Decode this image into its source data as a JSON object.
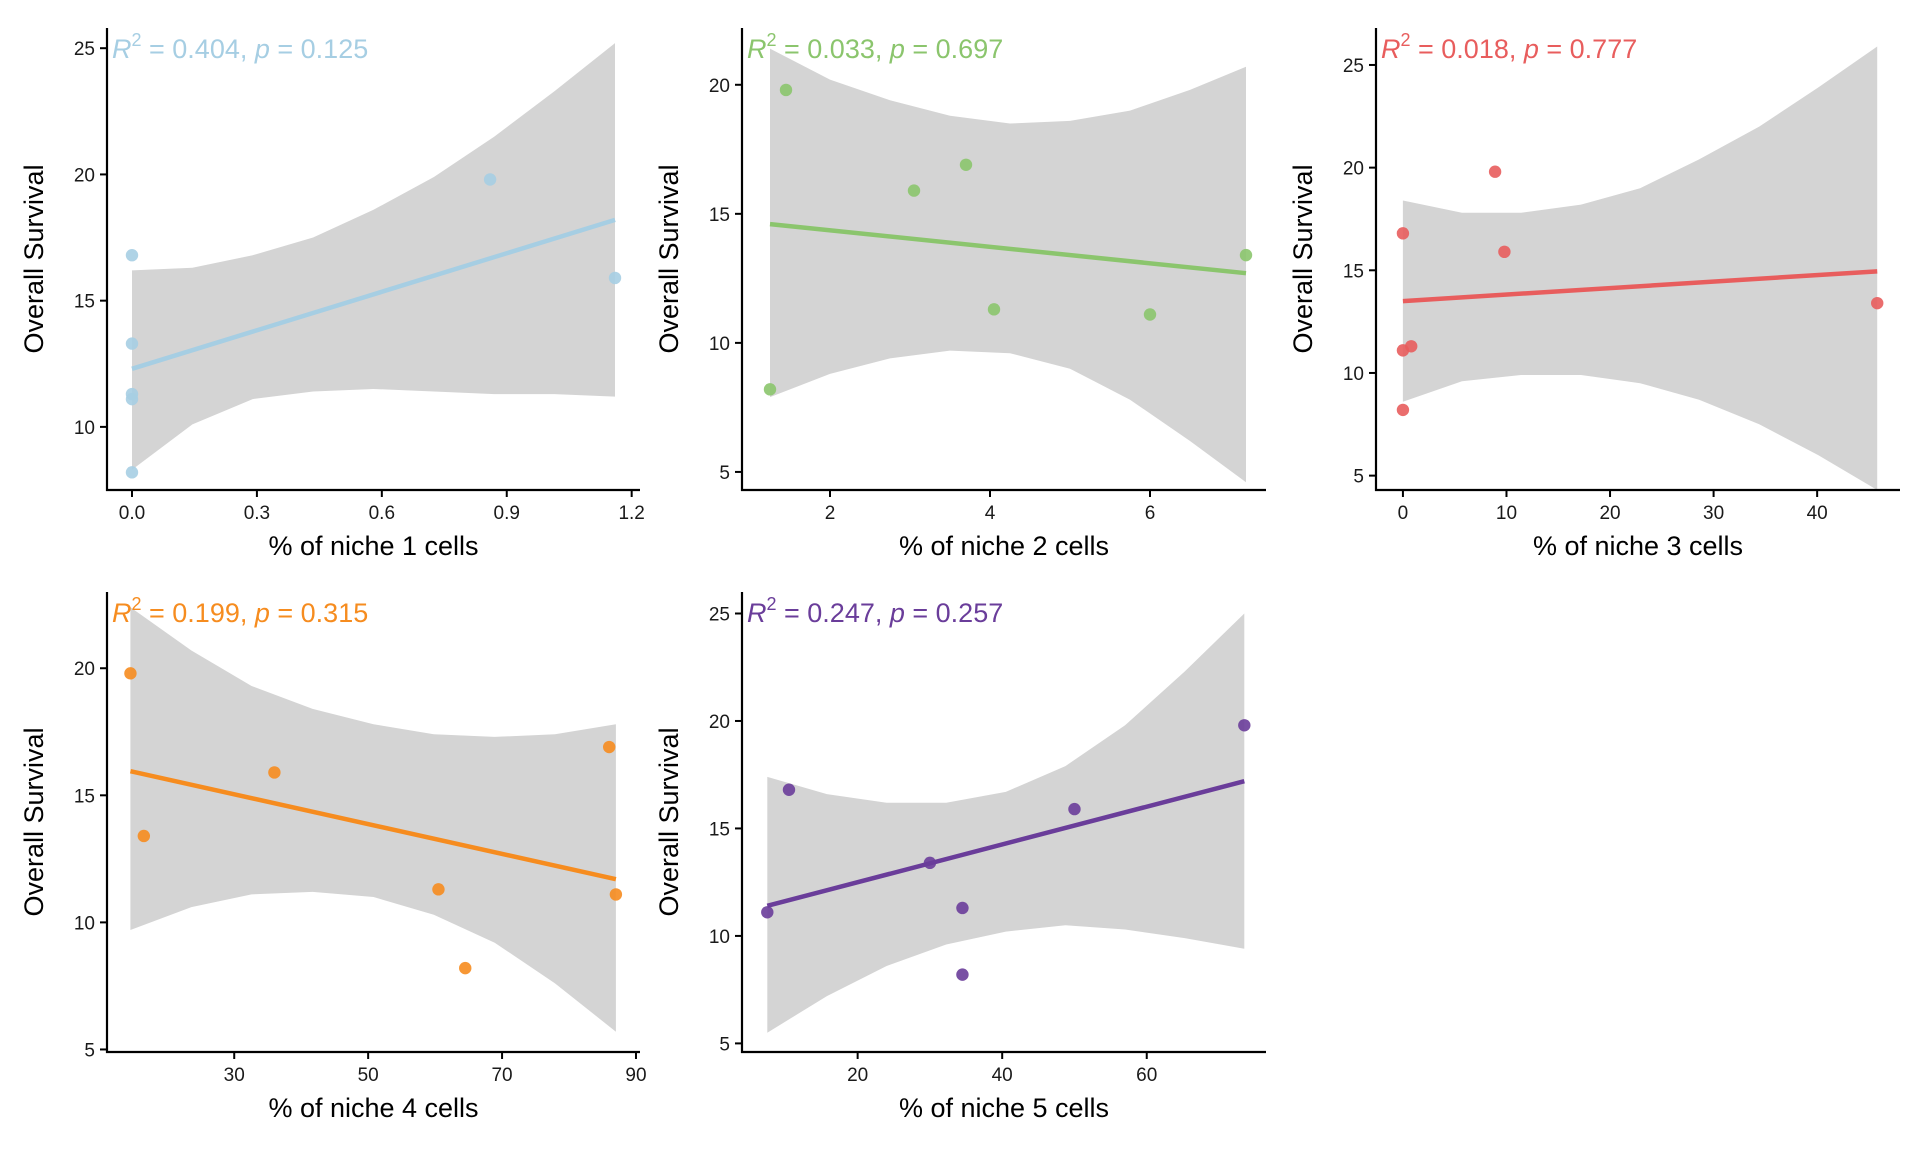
{
  "chart_data": [
    {
      "type": "scatter",
      "series": [
        {
          "color": "#a6cee3",
          "points": [
            [
              0.0,
              8.2
            ],
            [
              0.0,
              11.1
            ],
            [
              0.0,
              11.3
            ],
            [
              0.0,
              13.3
            ],
            [
              0.0,
              16.8
            ],
            [
              0.86,
              19.8
            ],
            [
              1.16,
              15.9
            ]
          ]
        }
      ],
      "fit": {
        "x": [
          0.0,
          1.16
        ],
        "y": [
          12.3,
          18.2
        ]
      },
      "ci_band": {
        "x": [
          0.0,
          0.145,
          0.29,
          0.435,
          0.58,
          0.725,
          0.87,
          1.015,
          1.16
        ],
        "lower": [
          8.3,
          10.1,
          11.1,
          11.4,
          11.5,
          11.4,
          11.3,
          11.3,
          11.2
        ],
        "upper": [
          16.2,
          16.3,
          16.8,
          17.5,
          18.6,
          19.9,
          21.5,
          23.3,
          25.2
        ]
      },
      "xlim": [
        -0.06,
        1.22
      ],
      "ylim": [
        7.5,
        25.8
      ],
      "xticks": [
        0.0,
        0.3,
        0.6,
        0.9,
        1.2
      ],
      "xtick_labels": [
        "0.0",
        "0.3",
        "0.6",
        "0.9",
        "1.2"
      ],
      "yticks": [
        10,
        15,
        20,
        25
      ],
      "ytick_labels": [
        "10",
        "15",
        "20",
        "25"
      ],
      "xlabel": "% of niche 1 cells",
      "ylabel": "Overall Survival",
      "stat_label": {
        "r_symbol": "R",
        "sup": "2",
        "r_value": " = 0.404, ",
        "p_symbol": "p",
        "p_value": " = 0.125"
      },
      "color": "#a6cee3"
    },
    {
      "type": "scatter",
      "series": [
        {
          "color": "#8bc56d",
          "points": [
            [
              1.25,
              8.2
            ],
            [
              1.45,
              19.8
            ],
            [
              3.05,
              15.9
            ],
            [
              3.7,
              16.9
            ],
            [
              4.05,
              11.3
            ],
            [
              6.0,
              11.1
            ],
            [
              7.2,
              13.4
            ]
          ]
        }
      ],
      "fit": {
        "x": [
          1.25,
          7.2
        ],
        "y": [
          14.6,
          12.7
        ]
      },
      "ci_band": {
        "x": [
          1.25,
          2.0,
          2.75,
          3.5,
          4.25,
          5.0,
          5.75,
          6.5,
          7.2
        ],
        "lower": [
          7.9,
          8.8,
          9.4,
          9.7,
          9.6,
          9.0,
          7.8,
          6.2,
          4.6
        ],
        "upper": [
          21.4,
          20.2,
          19.4,
          18.8,
          18.5,
          18.6,
          19.0,
          19.8,
          20.7
        ]
      },
      "xlim": [
        0.9,
        7.45
      ],
      "ylim": [
        4.3,
        22.2
      ],
      "xticks": [
        2,
        4,
        6
      ],
      "xtick_labels": [
        "2",
        "4",
        "6"
      ],
      "yticks": [
        5,
        10,
        15,
        20
      ],
      "ytick_labels": [
        "5",
        "10",
        "15",
        "20"
      ],
      "xlabel": "% of niche 2 cells",
      "ylabel": "Overall Survival",
      "stat_label": {
        "r_symbol": "R",
        "sup": "2",
        "r_value": " = 0.033, ",
        "p_symbol": "p",
        "p_value": " = 0.697"
      },
      "color": "#8bc56d"
    },
    {
      "type": "scatter",
      "series": [
        {
          "color": "#e85d5d",
          "points": [
            [
              0.0,
              8.2
            ],
            [
              0.0,
              11.1
            ],
            [
              0.8,
              11.3
            ],
            [
              0.0,
              16.8
            ],
            [
              8.9,
              19.8
            ],
            [
              9.8,
              15.9
            ],
            [
              45.8,
              13.4
            ]
          ]
        }
      ],
      "fit": {
        "x": [
          0.0,
          45.8
        ],
        "y": [
          13.5,
          14.95
        ]
      },
      "ci_band": {
        "x": [
          0.0,
          5.7,
          11.4,
          17.2,
          22.9,
          28.6,
          34.4,
          40.1,
          45.8
        ],
        "lower": [
          8.6,
          9.6,
          9.9,
          9.9,
          9.5,
          8.7,
          7.5,
          6.0,
          4.3
        ],
        "upper": [
          18.4,
          17.8,
          17.8,
          18.2,
          19.0,
          20.4,
          22.0,
          23.9,
          25.9
        ]
      },
      "xlim": [
        -2.6,
        48.0
      ],
      "ylim": [
        4.3,
        26.8
      ],
      "xticks": [
        0,
        10,
        20,
        30,
        40
      ],
      "xtick_labels": [
        "0",
        "10",
        "20",
        "30",
        "40"
      ],
      "yticks": [
        5,
        10,
        15,
        20,
        25
      ],
      "ytick_labels": [
        "5",
        "10",
        "15",
        "20",
        "25"
      ],
      "xlabel": "% of niche 3 cells",
      "ylabel": "Overall Survival",
      "stat_label": {
        "r_symbol": "R",
        "sup": "2",
        "r_value": " = 0.018, ",
        "p_symbol": "p",
        "p_value": " = 0.777"
      },
      "color": "#e85d5d"
    },
    {
      "type": "scatter",
      "series": [
        {
          "color": "#f68c1f",
          "points": [
            [
              14.5,
              19.8
            ],
            [
              16.5,
              13.4
            ],
            [
              36.0,
              15.9
            ],
            [
              60.5,
              11.3
            ],
            [
              64.5,
              8.2
            ],
            [
              86.0,
              16.9
            ],
            [
              87.0,
              11.1
            ]
          ]
        }
      ],
      "fit": {
        "x": [
          14.5,
          87.0
        ],
        "y": [
          15.95,
          11.7
        ]
      },
      "ci_band": {
        "x": [
          14.5,
          23.6,
          32.6,
          41.7,
          50.8,
          59.8,
          68.9,
          77.9,
          87.0
        ],
        "lower": [
          9.7,
          10.6,
          11.1,
          11.2,
          11.0,
          10.3,
          9.2,
          7.6,
          5.7
        ],
        "upper": [
          22.4,
          20.7,
          19.3,
          18.4,
          17.8,
          17.4,
          17.3,
          17.4,
          17.8
        ]
      },
      "xlim": [
        11.0,
        90.6
      ],
      "ylim": [
        4.9,
        23.0
      ],
      "xticks": [
        30,
        50,
        70,
        90
      ],
      "xtick_labels": [
        "30",
        "50",
        "70",
        "90"
      ],
      "yticks": [
        5,
        10,
        15,
        20
      ],
      "ytick_labels": [
        "5",
        "10",
        "15",
        "20"
      ],
      "xlabel": "% of niche 4 cells",
      "ylabel": "Overall Survival",
      "stat_label": {
        "r_symbol": "R",
        "sup": "2",
        "r_value": " = 0.199, ",
        "p_symbol": "p",
        "p_value": " = 0.315"
      },
      "color": "#f68c1f"
    },
    {
      "type": "scatter",
      "series": [
        {
          "color": "#6a3d9a",
          "points": [
            [
              7.5,
              11.1
            ],
            [
              10.5,
              16.8
            ],
            [
              30.0,
              13.4
            ],
            [
              34.5,
              11.3
            ],
            [
              34.5,
              8.2
            ],
            [
              50.0,
              15.9
            ],
            [
              73.5,
              19.8
            ]
          ]
        }
      ],
      "fit": {
        "x": [
          7.5,
          73.5
        ],
        "y": [
          11.4,
          17.2
        ]
      },
      "ci_band": {
        "x": [
          7.5,
          15.75,
          24.0,
          32.25,
          40.5,
          48.75,
          57.0,
          65.25,
          73.5
        ],
        "lower": [
          5.5,
          7.2,
          8.6,
          9.6,
          10.2,
          10.5,
          10.3,
          9.9,
          9.4
        ],
        "upper": [
          17.4,
          16.6,
          16.2,
          16.2,
          16.7,
          17.9,
          19.8,
          22.3,
          25.0
        ]
      },
      "xlim": [
        4.0,
        76.5
      ],
      "ylim": [
        4.6,
        26.0
      ],
      "xticks": [
        20,
        40,
        60
      ],
      "xtick_labels": [
        "20",
        "40",
        "60"
      ],
      "yticks": [
        5,
        10,
        15,
        20,
        25
      ],
      "ytick_labels": [
        "5",
        "10",
        "15",
        "20",
        "25"
      ],
      "xlabel": "% of niche 5 cells",
      "ylabel": "Overall Survival",
      "stat_label": {
        "r_symbol": "R",
        "sup": "2",
        "r_value": " = 0.247, ",
        "p_symbol": "p",
        "p_value": " = 0.257"
      },
      "color": "#6a3d9a"
    }
  ]
}
